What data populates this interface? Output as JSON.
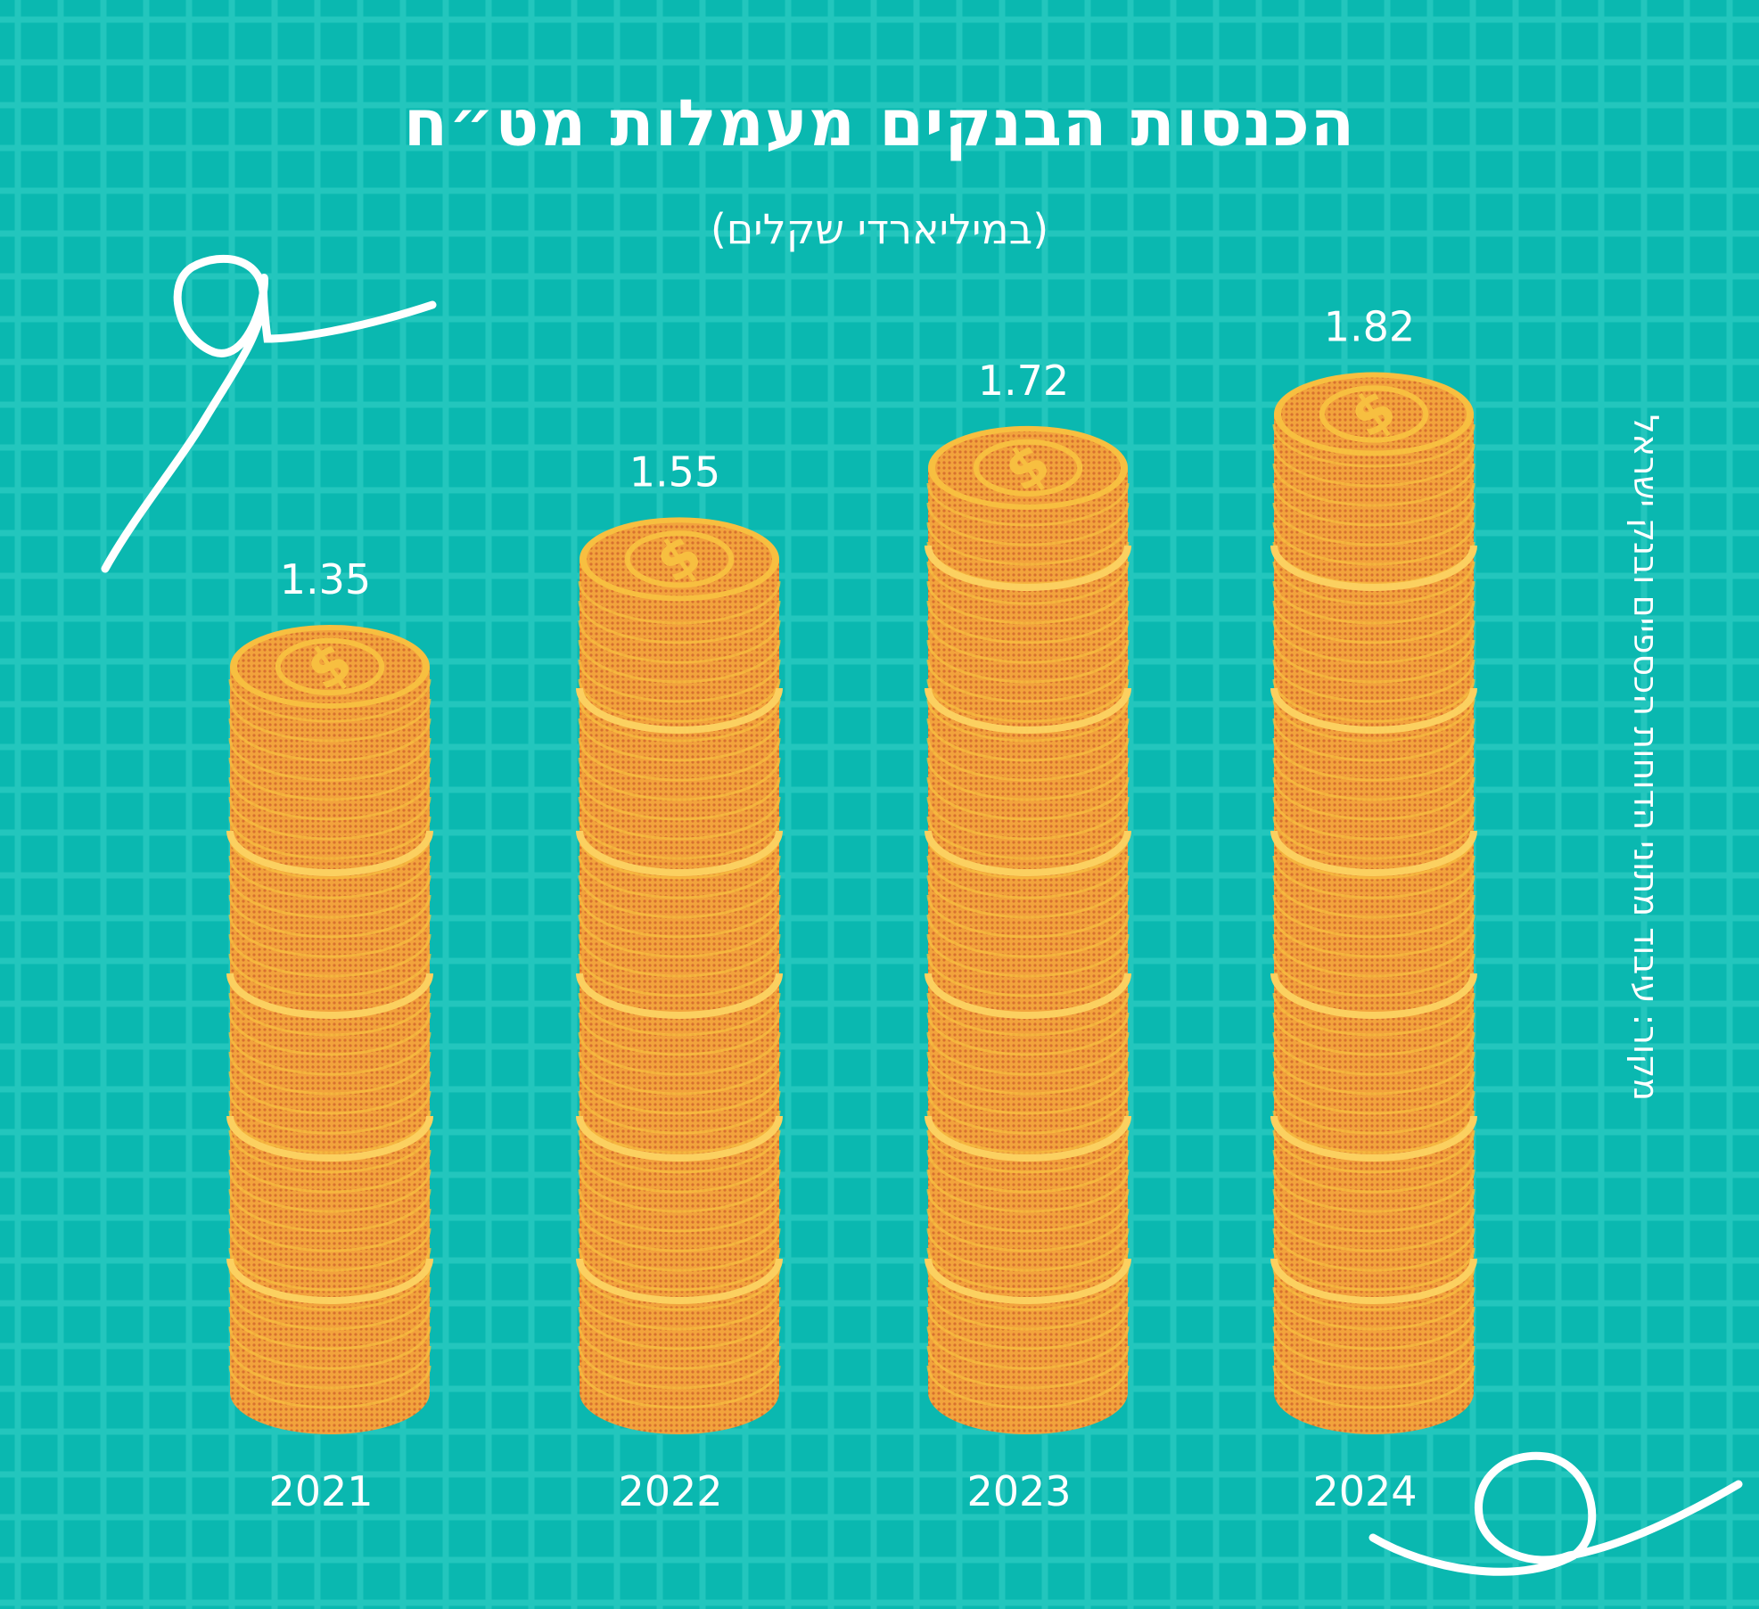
{
  "header": {
    "title": "הכנסות הבנקים מעמלות מט״ח",
    "subtitle": "(במיליארדי שקלים)"
  },
  "source": "מקור: עיבוד מתוני הדוחות הכספיים ובנק ישראל",
  "colors": {
    "background": "#0ab8b0",
    "grid": "#23c6bd",
    "coin_light": "#f7bf40",
    "coin_dark": "#e0803a",
    "text": "#ffffff"
  },
  "chart_data": {
    "type": "bar",
    "categories": [
      "2021",
      "2022",
      "2023",
      "2024"
    ],
    "values": [
      1.35,
      1.55,
      1.72,
      1.82
    ],
    "data_labels": [
      "1.35",
      "1.55",
      "1.72",
      "1.82"
    ],
    "title": "הכנסות הבנקים מעמלות מט״ח",
    "subtitle": "(במיליארדי שקלים)",
    "xlabel": "",
    "ylabel": "",
    "grid": false,
    "legend": "none",
    "bar_style": "stacked-coins",
    "coin_icon": "dollar-icon"
  }
}
